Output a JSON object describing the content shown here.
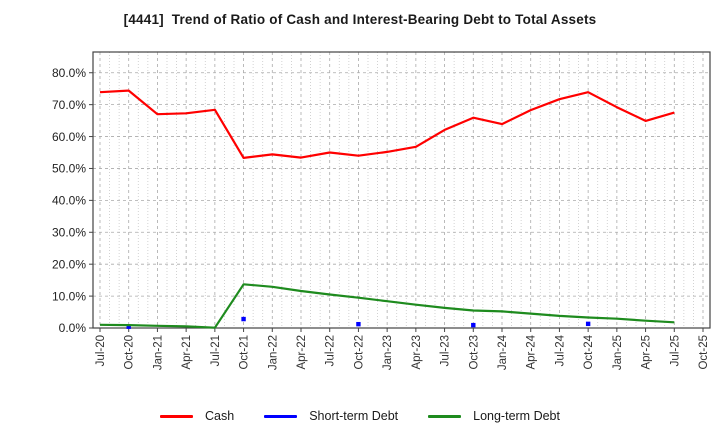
{
  "title": "[4441]  Trend of Ratio of Cash and Interest-Bearing Debt to Total Assets",
  "chart_data": {
    "type": "line",
    "title": "[4441]  Trend of Ratio of Cash and Interest-Bearing Debt to Total Assets",
    "xlabel": "",
    "ylabel": "",
    "ylim": [
      0,
      86.5
    ],
    "yticks": [
      0,
      10,
      20,
      30,
      40,
      50,
      60,
      70,
      80
    ],
    "ytick_suffix": "%",
    "grid": true,
    "legend_position": "bottom",
    "categories": [
      "Jul-20",
      "Oct-20",
      "Jan-21",
      "Apr-21",
      "Jul-21",
      "Oct-21",
      "Jan-22",
      "Apr-22",
      "Jul-22",
      "Oct-22",
      "Jan-23",
      "Apr-23",
      "Jul-23",
      "Oct-23",
      "Jan-24",
      "Apr-24",
      "Jul-24",
      "Oct-24",
      "Jan-25",
      "Apr-25",
      "Jul-25",
      "Oct-25"
    ],
    "series": [
      {
        "name": "Cash",
        "color": "#ff0000",
        "style": "line",
        "values": [
          73.9,
          74.4,
          67.0,
          67.3,
          68.4,
          53.3,
          54.4,
          53.4,
          55.0,
          54.0,
          55.2,
          56.8,
          62.1,
          65.9,
          63.9,
          68.3,
          71.7,
          73.9,
          69.2,
          64.9,
          67.5,
          null
        ]
      },
      {
        "name": "Short-term Debt",
        "color": "#0000ff",
        "style": "points",
        "values": [
          null,
          0.4,
          null,
          null,
          null,
          2.8,
          null,
          null,
          null,
          1.2,
          null,
          null,
          null,
          0.9,
          null,
          null,
          null,
          1.3,
          null,
          null,
          null,
          null
        ]
      },
      {
        "name": "Long-term Debt",
        "color": "#1e8b1e",
        "style": "line",
        "values": [
          1.0,
          0.9,
          0.7,
          0.5,
          0.1,
          13.7,
          12.9,
          11.6,
          10.5,
          9.5,
          8.4,
          7.3,
          6.3,
          5.5,
          5.2,
          4.5,
          3.8,
          3.3,
          2.9,
          2.3,
          1.8,
          null
        ]
      }
    ],
    "colors": {
      "grid_major": "#aaaaaa",
      "grid_minor": "#c8c8c8",
      "axis_border": "#444444",
      "tick_label": "#333333"
    }
  }
}
